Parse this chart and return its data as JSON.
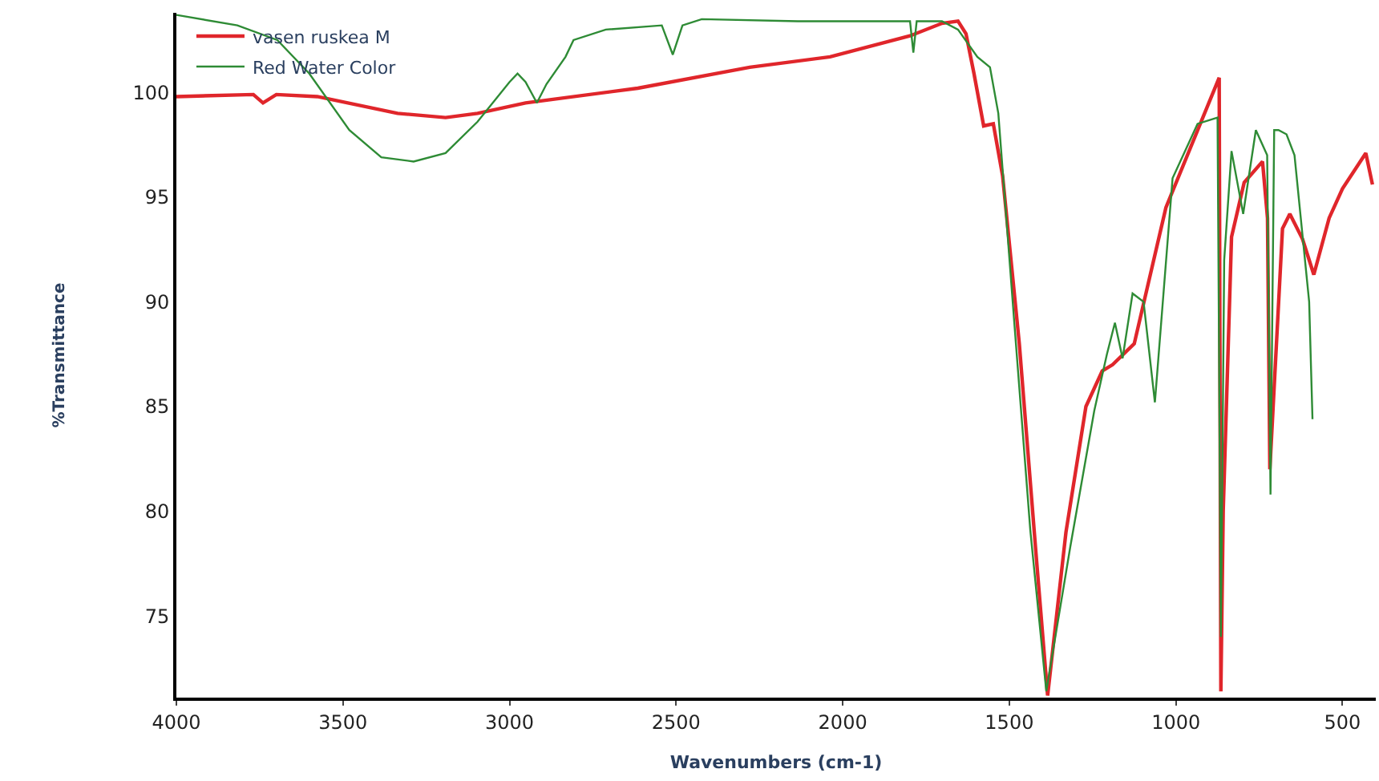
{
  "chart_data": {
    "type": "line",
    "xlabel": "Wavenumbers (cm-1)",
    "ylabel": "%Transmittance",
    "xlim": [
      4000,
      400
    ],
    "ylim": [
      71.1,
      103.8
    ],
    "xticks": [
      4000,
      3500,
      3000,
      2500,
      2000,
      1500,
      1000,
      500
    ],
    "yticks": [
      75,
      80,
      85,
      90,
      95,
      100
    ],
    "legend": "top left",
    "marker": "none",
    "line_style": "solid",
    "series": [
      {
        "name": "vasen ruskea M",
        "color": "#e0262b",
        "x": [
          4000,
          3769,
          3740,
          3700,
          3577,
          3336,
          3192,
          3096,
          2952,
          2615,
          2279,
          2038,
          1798,
          1702,
          1654,
          1630,
          1606,
          1577,
          1548,
          1520,
          1470,
          1420,
          1385,
          1330,
          1270,
          1221,
          1190,
          1125,
          1030,
          870,
          865,
          858,
          833,
          795,
          740,
          725,
          718,
          680,
          658,
          620,
          586,
          540,
          500,
          430,
          410
        ],
        "values": [
          99.8,
          99.9,
          99.5,
          99.9,
          99.8,
          99.0,
          98.8,
          99.0,
          99.5,
          100.2,
          101.2,
          101.7,
          102.7,
          103.3,
          103.4,
          102.8,
          100.9,
          98.4,
          98.5,
          96.0,
          88.0,
          78.0,
          71.2,
          79.0,
          85.0,
          86.7,
          87.0,
          88.0,
          94.5,
          100.7,
          71.4,
          80.0,
          93.1,
          95.7,
          96.7,
          94.0,
          82.0,
          93.5,
          94.2,
          93.0,
          91.3,
          94.0,
          95.4,
          97.1,
          95.6
        ]
      },
      {
        "name": "Red Water Color",
        "color": "#2e8b35",
        "x": [
          4000,
          3817,
          3697,
          3601,
          3481,
          3385,
          3288,
          3192,
          3096,
          3000,
          2976,
          2952,
          2918,
          2889,
          2832,
          2808,
          2711,
          2543,
          2510,
          2481,
          2423,
          2135,
          1798,
          1788,
          1778,
          1702,
          1654,
          1596,
          1558,
          1533,
          1485,
          1437,
          1389,
          1317,
          1245,
          1207,
          1183,
          1160,
          1130,
          1097,
          1063,
          1010,
          935,
          875,
          865,
          855,
          833,
          798,
          760,
          726,
          716,
          705,
          692,
          668,
          644,
          600,
          590
        ],
        "values": [
          103.7,
          103.2,
          102.5,
          100.9,
          98.2,
          96.9,
          96.7,
          97.1,
          98.6,
          100.5,
          100.9,
          100.5,
          99.5,
          100.4,
          101.7,
          102.5,
          103.0,
          103.2,
          101.8,
          103.2,
          103.5,
          103.4,
          103.4,
          101.9,
          103.4,
          103.4,
          103.0,
          101.7,
          101.2,
          99.0,
          89.0,
          79.1,
          71.4,
          78.3,
          84.8,
          87.5,
          89.0,
          87.3,
          90.4,
          90.0,
          85.2,
          95.9,
          98.5,
          98.8,
          74.0,
          92.0,
          97.2,
          94.2,
          98.2,
          97.0,
          80.8,
          98.2,
          98.2,
          98.0,
          97.0,
          90.0,
          84.4
        ]
      }
    ]
  }
}
